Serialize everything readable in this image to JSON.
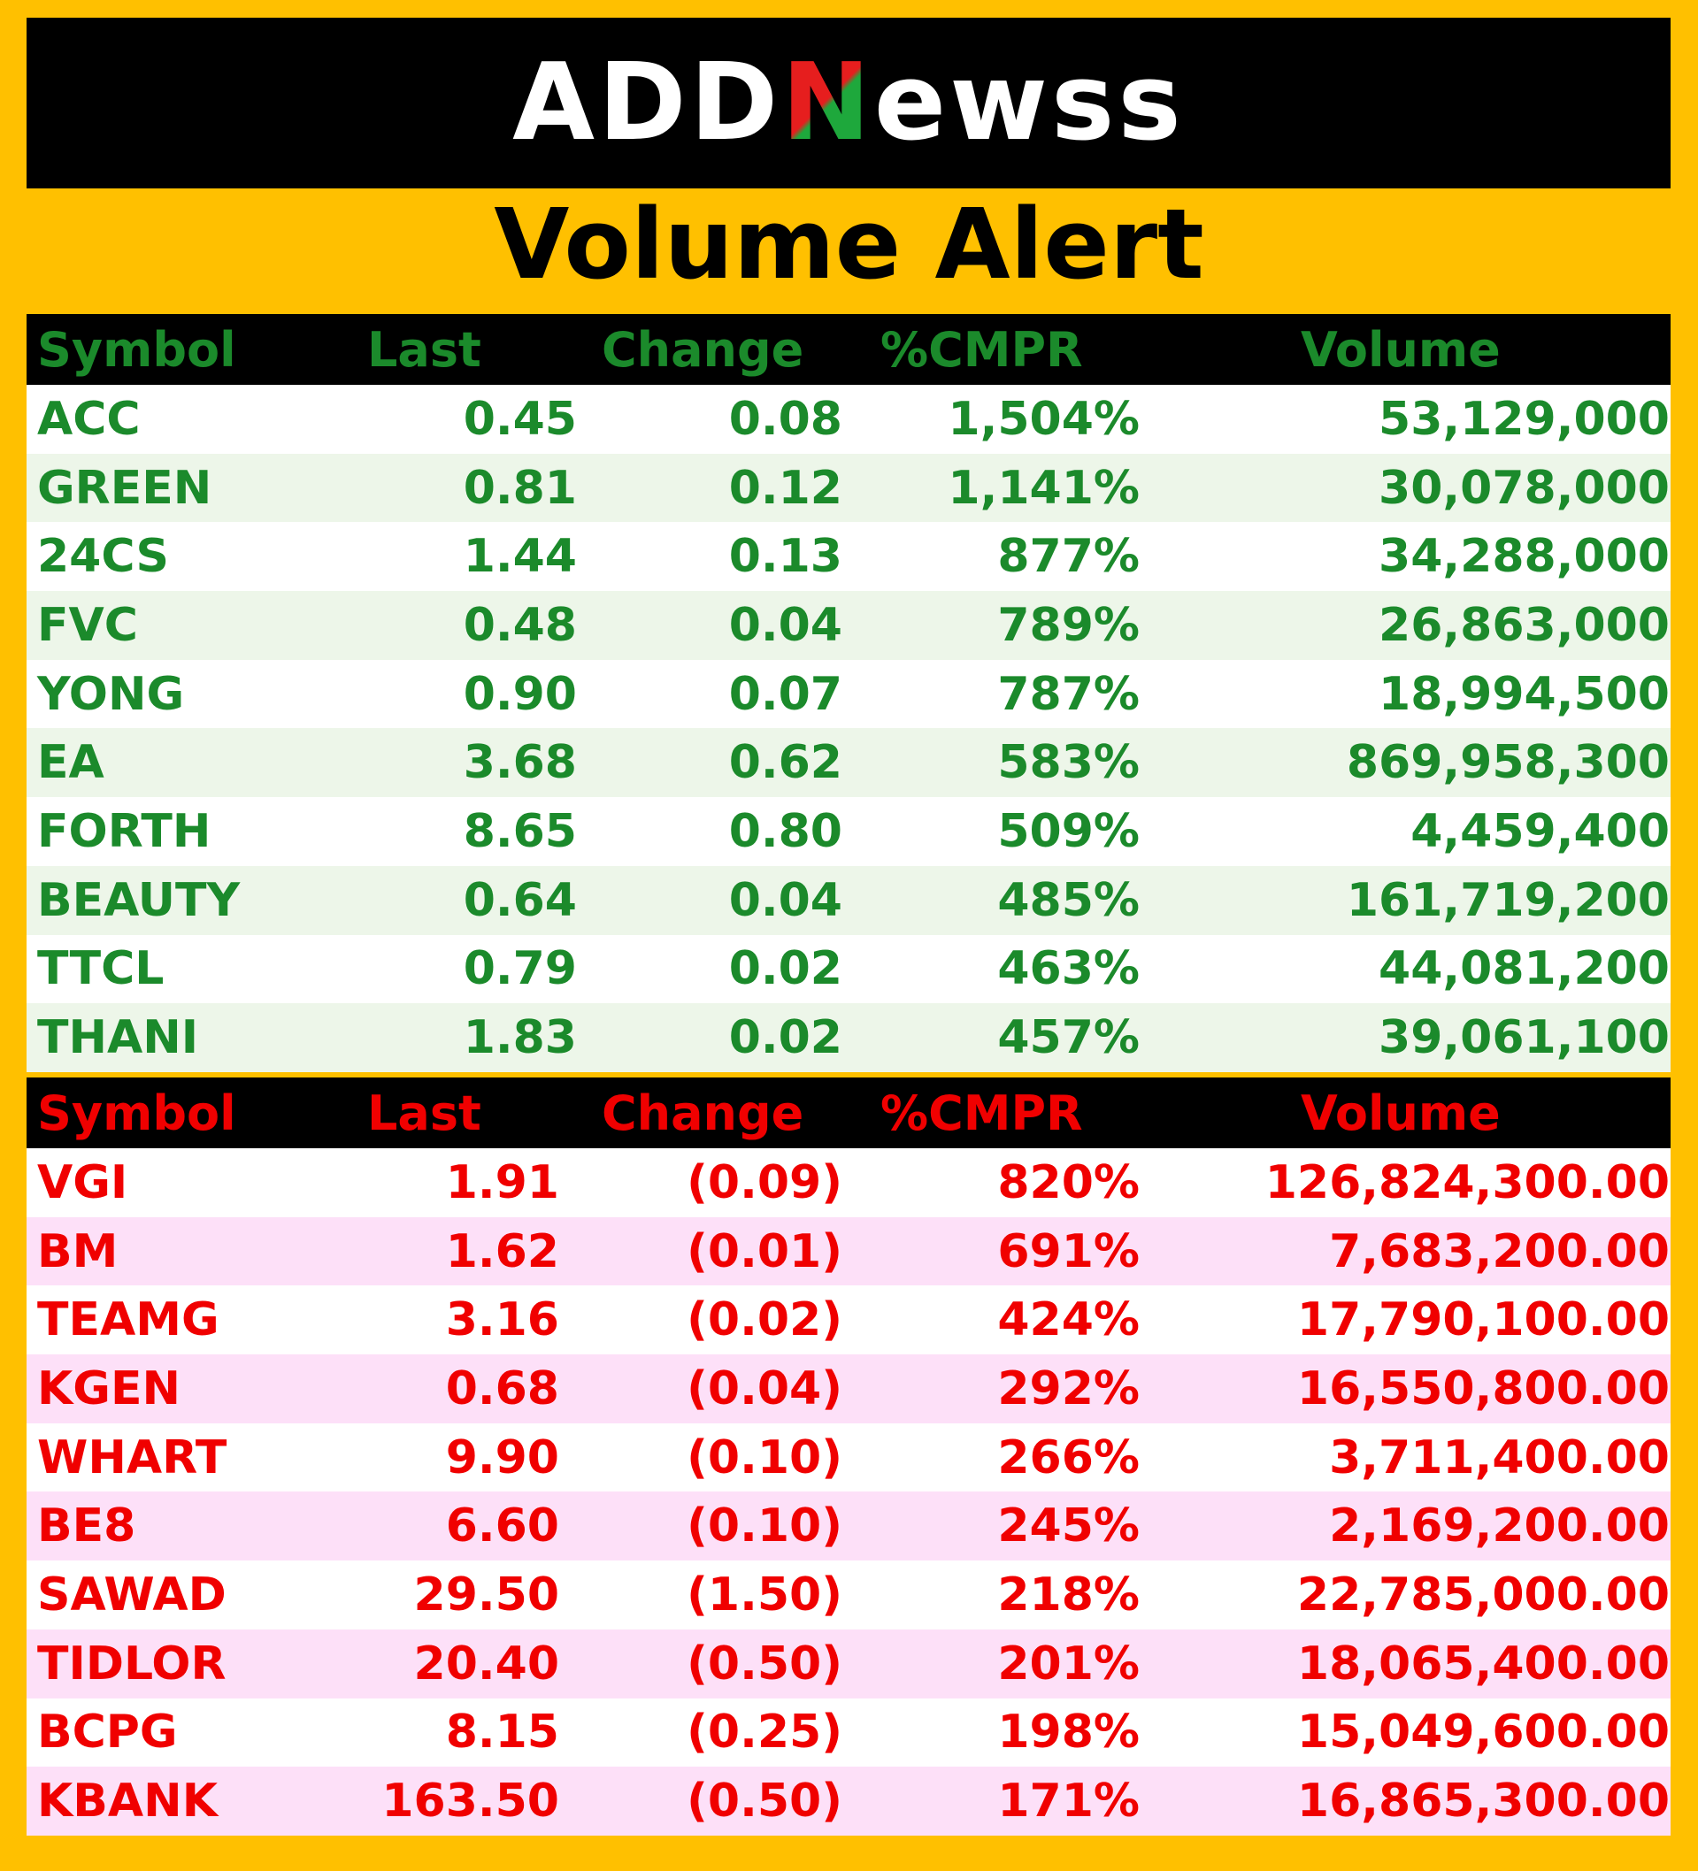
{
  "brand": {
    "logo_parts": [
      "ADD",
      "N",
      "ewss"
    ],
    "logo_text": "ADDNewss",
    "colors": {
      "logo_red": "#e61e1e",
      "logo_green": "#1ea83c",
      "gain": "#1b8a2b",
      "loss": "#f00000",
      "frame": "#ffc000"
    }
  },
  "title": "Volume Alert",
  "gainers": {
    "headers": [
      "Symbol",
      "Last",
      "Change",
      "%CMPR",
      "Volume"
    ],
    "rows": [
      [
        "ACC",
        "0.45",
        "0.08",
        "1,504%",
        "53,129,000"
      ],
      [
        "GREEN",
        "0.81",
        "0.12",
        "1,141%",
        "30,078,000"
      ],
      [
        "24CS",
        "1.44",
        "0.13",
        "877%",
        "34,288,000"
      ],
      [
        "FVC",
        "0.48",
        "0.04",
        "789%",
        "26,863,000"
      ],
      [
        "YONG",
        "0.90",
        "0.07",
        "787%",
        "18,994,500"
      ],
      [
        "EA",
        "3.68",
        "0.62",
        "583%",
        "869,958,300"
      ],
      [
        "FORTH",
        "8.65",
        "0.80",
        "509%",
        "4,459,400"
      ],
      [
        "BEAUTY",
        "0.64",
        "0.04",
        "485%",
        "161,719,200"
      ],
      [
        "TTCL",
        "0.79",
        "0.02",
        "463%",
        "44,081,200"
      ],
      [
        "THANI",
        "1.83",
        "0.02",
        "457%",
        "39,061,100"
      ]
    ]
  },
  "losers": {
    "headers": [
      "Symbol",
      "Last",
      "Change",
      "%CMPR",
      "Volume"
    ],
    "rows": [
      [
        "VGI",
        "1.91",
        "(0.09)",
        "820%",
        "126,824,300.00"
      ],
      [
        "BM",
        "1.62",
        "(0.01)",
        "691%",
        "7,683,200.00"
      ],
      [
        "TEAMG",
        "3.16",
        "(0.02)",
        "424%",
        "17,790,100.00"
      ],
      [
        "KGEN",
        "0.68",
        "(0.04)",
        "292%",
        "16,550,800.00"
      ],
      [
        "WHART",
        "9.90",
        "(0.10)",
        "266%",
        "3,711,400.00"
      ],
      [
        "BE8",
        "6.60",
        "(0.10)",
        "245%",
        "2,169,200.00"
      ],
      [
        "SAWAD",
        "29.50",
        "(1.50)",
        "218%",
        "22,785,000.00"
      ],
      [
        "TIDLOR",
        "20.40",
        "(0.50)",
        "201%",
        "18,065,400.00"
      ],
      [
        "BCPG",
        "8.15",
        "(0.25)",
        "198%",
        "15,049,600.00"
      ],
      [
        "KBANK",
        "163.50",
        "(0.50)",
        "171%",
        "16,865,300.00"
      ]
    ]
  }
}
